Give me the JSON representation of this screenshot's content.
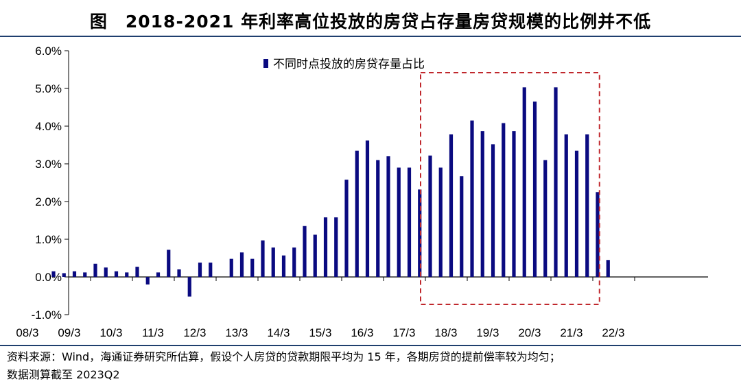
{
  "figure_label": "图",
  "title": "2018-2021 年利率高位投放的房贷占存量房贷规模的比例并不低",
  "source_lines": [
    "资料来源：Wind，海通证券研究所估算，假设个人房贷的贷款期限平均为 15 年，各期房贷的提前偿率较为均匀；",
    "数据测算截至 2023Q2"
  ],
  "colors": {
    "bar": "#0a0a80",
    "highlight_box": "#c0282d",
    "rule": "#1f3f6e",
    "axis": "#000000"
  },
  "chart_data": {
    "type": "bar",
    "legend": {
      "label": "不同时点投放的房贷存量占比",
      "placement": "top-center"
    },
    "ylim": [
      -1.0,
      6.0
    ],
    "y_ticks": [
      "-1.0%",
      "0.0%",
      "1.0%",
      "2.0%",
      "3.0%",
      "4.0%",
      "5.0%",
      "6.0%"
    ],
    "x_tick_labels": [
      "08/3",
      "09/3",
      "10/3",
      "11/3",
      "12/3",
      "13/3",
      "14/3",
      "15/3",
      "16/3",
      "17/3",
      "18/3",
      "19/3",
      "20/3",
      "21/3",
      "22/3"
    ],
    "grid": false,
    "highlight": {
      "from_quarter": "2018Q1",
      "to_quarter": "2021Q4",
      "style": "dashed"
    },
    "x": [
      "2008Q1",
      "2008Q2",
      "2008Q3",
      "2008Q4",
      "2009Q1",
      "2009Q2",
      "2009Q3",
      "2009Q4",
      "2010Q1",
      "2010Q2",
      "2010Q3",
      "2010Q4",
      "2011Q1",
      "2011Q2",
      "2011Q3",
      "2011Q4",
      "2012Q1",
      "2012Q2",
      "2012Q3",
      "2012Q4",
      "2013Q1",
      "2013Q2",
      "2013Q3",
      "2013Q4",
      "2014Q1",
      "2014Q2",
      "2014Q3",
      "2014Q4",
      "2015Q1",
      "2015Q2",
      "2015Q3",
      "2015Q4",
      "2016Q1",
      "2016Q2",
      "2016Q3",
      "2016Q4",
      "2017Q1",
      "2017Q2",
      "2017Q3",
      "2017Q4",
      "2018Q1",
      "2018Q2",
      "2018Q3",
      "2018Q4",
      "2019Q1",
      "2019Q2",
      "2019Q3",
      "2019Q4",
      "2020Q1",
      "2020Q2",
      "2020Q3",
      "2020Q4",
      "2021Q1",
      "2021Q2",
      "2021Q3",
      "2021Q4",
      "2022Q1",
      "2022Q2"
    ],
    "values": [
      0,
      0,
      0,
      0,
      0.15,
      0.1,
      0.15,
      0.12,
      0.35,
      0.25,
      0.15,
      0.12,
      0.27,
      -0.2,
      0.12,
      0.72,
      0.2,
      -0.52,
      0.38,
      0.38,
      0,
      0.48,
      0.65,
      0.48,
      0.97,
      0.78,
      0.57,
      0.78,
      1.35,
      1.12,
      1.58,
      1.58,
      2.58,
      3.35,
      3.62,
      3.1,
      3.2,
      2.9,
      2.9,
      2.32,
      3.22,
      2.9,
      3.78,
      2.67,
      4.15,
      3.87,
      3.52,
      4.08,
      3.87,
      5.03,
      4.65,
      3.1,
      5.03,
      3.78,
      3.35,
      3.78,
      2.25,
      0.45
    ]
  }
}
